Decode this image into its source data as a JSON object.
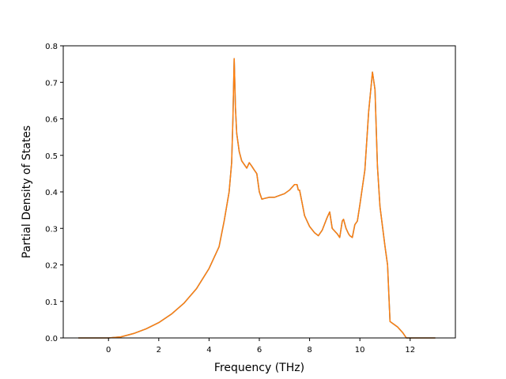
{
  "chart_data": {
    "type": "line",
    "title": "",
    "xlabel": "Frequency (THz)",
    "ylabel": "Partial Density of States",
    "xlim": [
      -1.8,
      13.8
    ],
    "ylim": [
      0.0,
      0.8
    ],
    "xticks": [
      0,
      2,
      4,
      6,
      8,
      10,
      12
    ],
    "yticks": [
      0.0,
      0.1,
      0.2,
      0.3,
      0.4,
      0.5,
      0.6,
      0.7,
      0.8
    ],
    "xtick_labels": [
      "0",
      "2",
      "4",
      "6",
      "8",
      "10",
      "12"
    ],
    "ytick_labels": [
      "0.0",
      "0.1",
      "0.2",
      "0.3",
      "0.4",
      "0.5",
      "0.6",
      "0.7",
      "0.8"
    ],
    "grid": false,
    "series": [
      {
        "color": "#1f77b4",
        "x": [
          -1.2,
          -0.5,
          0.0,
          0.5,
          1.0,
          1.5,
          2.0,
          2.5,
          3.0,
          3.5,
          4.0,
          4.4,
          4.6,
          4.8,
          4.9,
          4.95,
          5.0,
          5.05,
          5.1,
          5.2,
          5.3,
          5.5,
          5.6,
          5.7,
          5.8,
          5.9,
          6.0,
          6.1,
          6.2,
          6.4,
          6.6,
          6.8,
          7.0,
          7.2,
          7.4,
          7.5,
          7.55,
          7.6,
          7.7,
          7.8,
          8.0,
          8.2,
          8.35,
          8.5,
          8.7,
          8.8,
          8.9,
          9.1,
          9.2,
          9.3,
          9.35,
          9.45,
          9.55,
          9.6,
          9.7,
          9.8,
          9.9,
          10.0,
          10.2,
          10.35,
          10.5,
          10.6,
          10.7,
          10.8,
          11.0,
          11.1,
          11.2,
          11.3,
          11.5,
          11.7,
          11.85,
          12.0,
          12.5,
          13.0
        ],
        "y": [
          0.0,
          0.0,
          0.0,
          0.003,
          0.012,
          0.025,
          0.042,
          0.065,
          0.095,
          0.135,
          0.19,
          0.25,
          0.32,
          0.4,
          0.48,
          0.6,
          0.765,
          0.63,
          0.56,
          0.51,
          0.485,
          0.465,
          0.48,
          0.47,
          0.46,
          0.45,
          0.4,
          0.38,
          0.382,
          0.385,
          0.385,
          0.39,
          0.395,
          0.405,
          0.42,
          0.42,
          0.405,
          0.405,
          0.37,
          0.335,
          0.305,
          0.288,
          0.28,
          0.295,
          0.33,
          0.345,
          0.3,
          0.285,
          0.275,
          0.32,
          0.325,
          0.3,
          0.285,
          0.28,
          0.275,
          0.31,
          0.32,
          0.365,
          0.46,
          0.62,
          0.728,
          0.68,
          0.47,
          0.36,
          0.25,
          0.2,
          0.045,
          0.04,
          0.03,
          0.015,
          0.0,
          0.0,
          0.0,
          0.0
        ]
      },
      {
        "color": "#ff7f0e",
        "x": [
          -1.2,
          -0.5,
          0.0,
          0.5,
          1.0,
          1.5,
          2.0,
          2.5,
          3.0,
          3.5,
          4.0,
          4.4,
          4.6,
          4.8,
          4.9,
          4.95,
          5.0,
          5.05,
          5.1,
          5.2,
          5.3,
          5.5,
          5.6,
          5.7,
          5.8,
          5.9,
          6.0,
          6.1,
          6.2,
          6.4,
          6.6,
          6.8,
          7.0,
          7.2,
          7.4,
          7.5,
          7.55,
          7.6,
          7.7,
          7.8,
          8.0,
          8.2,
          8.35,
          8.5,
          8.7,
          8.8,
          8.9,
          9.1,
          9.2,
          9.3,
          9.35,
          9.45,
          9.55,
          9.6,
          9.7,
          9.8,
          9.9,
          10.0,
          10.2,
          10.35,
          10.5,
          10.6,
          10.7,
          10.8,
          11.0,
          11.1,
          11.2,
          11.3,
          11.5,
          11.7,
          11.85,
          12.0,
          12.5,
          13.0
        ],
        "y": [
          0.0,
          0.0,
          0.0,
          0.003,
          0.012,
          0.025,
          0.042,
          0.065,
          0.095,
          0.135,
          0.19,
          0.25,
          0.32,
          0.4,
          0.48,
          0.6,
          0.765,
          0.63,
          0.56,
          0.51,
          0.485,
          0.465,
          0.48,
          0.47,
          0.46,
          0.45,
          0.4,
          0.38,
          0.382,
          0.385,
          0.385,
          0.39,
          0.395,
          0.405,
          0.42,
          0.42,
          0.405,
          0.405,
          0.37,
          0.335,
          0.305,
          0.288,
          0.28,
          0.295,
          0.33,
          0.345,
          0.3,
          0.285,
          0.275,
          0.32,
          0.325,
          0.3,
          0.285,
          0.28,
          0.275,
          0.31,
          0.32,
          0.365,
          0.46,
          0.62,
          0.728,
          0.68,
          0.47,
          0.36,
          0.25,
          0.2,
          0.045,
          0.04,
          0.03,
          0.015,
          0.0,
          0.0,
          0.0,
          0.0
        ]
      }
    ]
  }
}
